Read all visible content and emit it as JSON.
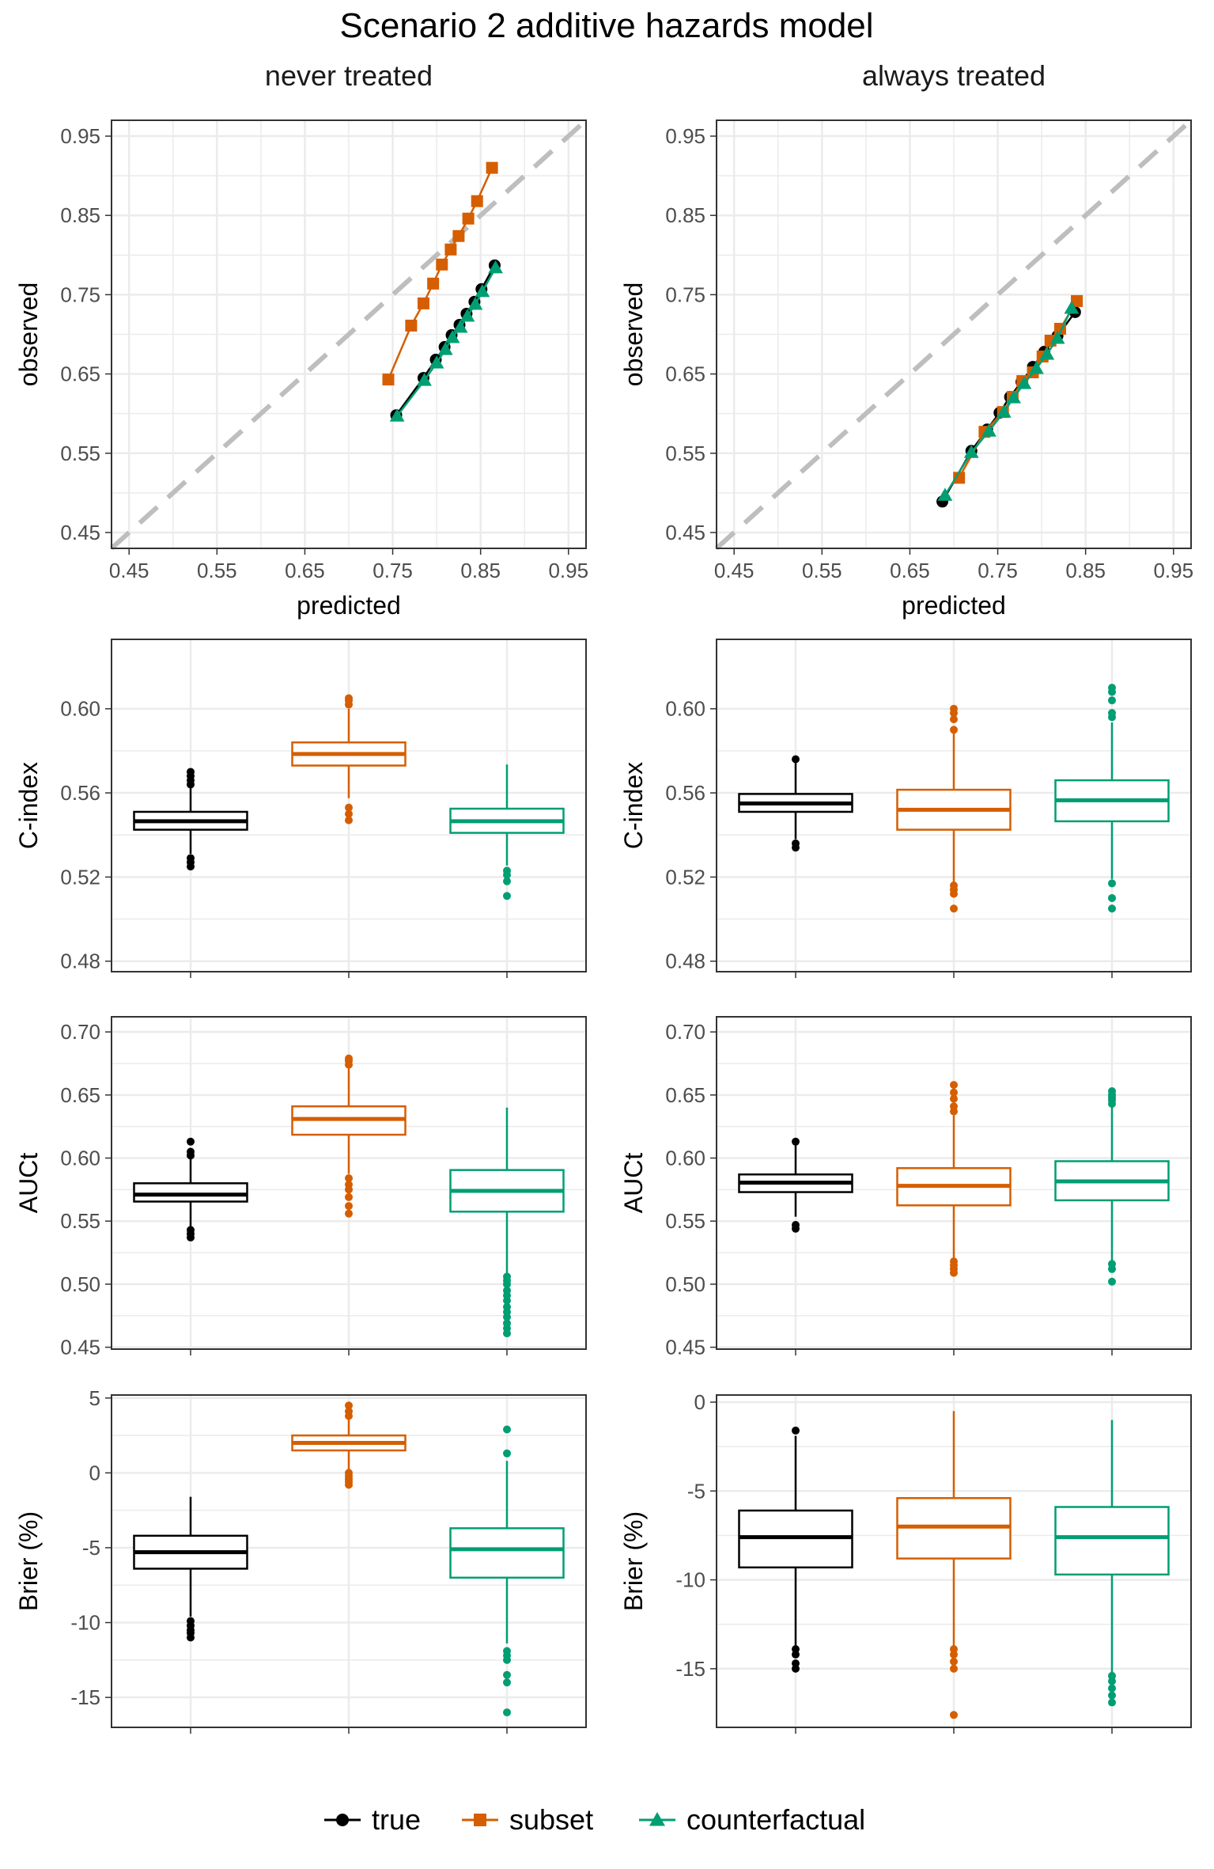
{
  "title": "Scenario 2 additive hazards model",
  "colors": {
    "true": "#000000",
    "subset": "#D55E00",
    "counterfactual": "#009E73",
    "reference": "#BEBEBE",
    "grid": "#EBEBEB",
    "panel_border": "#333333",
    "tick_text": "#4D4D4D"
  },
  "legend": {
    "position": "bottom",
    "items": [
      {
        "key": "true",
        "label": "true",
        "shape": "circle"
      },
      {
        "key": "subset",
        "label": "subset",
        "shape": "square"
      },
      {
        "key": "counterfactual",
        "label": "counterfactual",
        "shape": "triangle"
      }
    ]
  },
  "chart_data": [
    {
      "type": "line",
      "id": "cal-never",
      "row": 0,
      "col": 0,
      "facet_title": "never treated",
      "xlabel": "predicted",
      "ylabel": "observed",
      "xlim": [
        0.43,
        0.97
      ],
      "ylim": [
        0.43,
        0.97
      ],
      "xticks": [
        0.45,
        0.55,
        0.65,
        0.75,
        0.85,
        0.95
      ],
      "yticks": [
        0.45,
        0.55,
        0.65,
        0.75,
        0.85,
        0.95
      ],
      "tick_labels": [
        "0.45",
        "0.55",
        "0.65",
        "0.75",
        "0.85",
        "0.95"
      ],
      "reference_line": "y = x",
      "series": [
        {
          "name": "subset",
          "x": [
            0.745,
            0.771,
            0.785,
            0.796,
            0.806,
            0.816,
            0.825,
            0.836,
            0.846,
            0.863
          ],
          "y": [
            0.643,
            0.711,
            0.739,
            0.764,
            0.788,
            0.807,
            0.824,
            0.846,
            0.868,
            0.91
          ]
        },
        {
          "name": "true",
          "x": [
            0.754,
            0.785,
            0.799,
            0.809,
            0.817,
            0.826,
            0.834,
            0.843,
            0.851,
            0.866
          ],
          "y": [
            0.598,
            0.645,
            0.668,
            0.684,
            0.699,
            0.712,
            0.726,
            0.741,
            0.757,
            0.787
          ]
        },
        {
          "name": "counterfactual",
          "x": [
            0.755,
            0.786,
            0.8,
            0.81,
            0.818,
            0.827,
            0.835,
            0.844,
            0.852,
            0.867
          ],
          "y": [
            0.597,
            0.642,
            0.664,
            0.681,
            0.696,
            0.709,
            0.723,
            0.738,
            0.754,
            0.784
          ]
        }
      ]
    },
    {
      "type": "line",
      "id": "cal-always",
      "row": 0,
      "col": 1,
      "facet_title": "always treated",
      "xlabel": "predicted",
      "ylabel": "observed",
      "xlim": [
        0.43,
        0.97
      ],
      "ylim": [
        0.43,
        0.97
      ],
      "xticks": [
        0.45,
        0.55,
        0.65,
        0.75,
        0.85,
        0.95
      ],
      "yticks": [
        0.45,
        0.55,
        0.65,
        0.75,
        0.85,
        0.95
      ],
      "tick_labels": [
        "0.45",
        "0.55",
        "0.65",
        "0.75",
        "0.85",
        "0.95"
      ],
      "reference_line": "y = x",
      "series": [
        {
          "name": "true",
          "x": [
            0.687,
            0.72,
            0.738,
            0.752,
            0.764,
            0.777,
            0.79,
            0.803,
            0.818,
            0.838
          ],
          "y": [
            0.489,
            0.553,
            0.58,
            0.601,
            0.621,
            0.64,
            0.659,
            0.678,
            0.698,
            0.728
          ]
        },
        {
          "name": "subset",
          "x": [
            0.706,
            0.735,
            0.756,
            0.767,
            0.778,
            0.79,
            0.801,
            0.81,
            0.821,
            0.84
          ],
          "y": [
            0.519,
            0.577,
            0.602,
            0.621,
            0.641,
            0.652,
            0.672,
            0.692,
            0.707,
            0.742
          ]
        },
        {
          "name": "counterfactual",
          "x": [
            0.69,
            0.72,
            0.74,
            0.757,
            0.768,
            0.78,
            0.794,
            0.806,
            0.818,
            0.834
          ],
          "y": [
            0.497,
            0.551,
            0.578,
            0.602,
            0.62,
            0.638,
            0.657,
            0.675,
            0.695,
            0.733
          ]
        }
      ]
    },
    {
      "type": "box",
      "id": "cindex-never",
      "row": 1,
      "col": 0,
      "ylabel": "C-index",
      "ylim": [
        0.475,
        0.633
      ],
      "yticks": [
        0.48,
        0.52,
        0.56,
        0.6
      ],
      "tick_labels": [
        "0.48",
        "0.52",
        "0.56",
        "0.60"
      ],
      "boxes": [
        {
          "name": "true",
          "min": 0.531,
          "q1": 0.5425,
          "median": 0.5465,
          "q3": 0.551,
          "max": 0.5635,
          "outliers": [
            0.525,
            0.527,
            0.529,
            0.564,
            0.566,
            0.568,
            0.57
          ]
        },
        {
          "name": "subset",
          "min": 0.5575,
          "q1": 0.573,
          "median": 0.5785,
          "q3": 0.584,
          "max": 0.6,
          "outliers": [
            0.547,
            0.55,
            0.553,
            0.602,
            0.604,
            0.605
          ]
        },
        {
          "name": "counterfactual",
          "min": 0.5255,
          "q1": 0.541,
          "median": 0.5465,
          "q3": 0.5525,
          "max": 0.5735,
          "outliers": [
            0.511,
            0.518,
            0.521,
            0.523
          ]
        }
      ]
    },
    {
      "type": "box",
      "id": "cindex-always",
      "row": 1,
      "col": 1,
      "ylabel": "C-index",
      "ylim": [
        0.475,
        0.633
      ],
      "yticks": [
        0.48,
        0.52,
        0.56,
        0.6
      ],
      "tick_labels": [
        "0.48",
        "0.52",
        "0.56",
        "0.60"
      ],
      "boxes": [
        {
          "name": "true",
          "min": 0.538,
          "q1": 0.551,
          "median": 0.555,
          "q3": 0.5595,
          "max": 0.5745,
          "outliers": [
            0.534,
            0.536,
            0.576
          ]
        },
        {
          "name": "subset",
          "min": 0.5165,
          "q1": 0.5425,
          "median": 0.552,
          "q3": 0.5615,
          "max": 0.5885,
          "outliers": [
            0.505,
            0.512,
            0.514,
            0.516,
            0.59,
            0.595,
            0.598,
            0.6
          ]
        },
        {
          "name": "counterfactual",
          "min": 0.519,
          "q1": 0.5465,
          "median": 0.5565,
          "q3": 0.566,
          "max": 0.5935,
          "outliers": [
            0.505,
            0.51,
            0.517,
            0.596,
            0.598,
            0.604,
            0.608,
            0.61
          ]
        }
      ]
    },
    {
      "type": "box",
      "id": "auct-never",
      "row": 2,
      "col": 0,
      "ylabel": "AUCt",
      "ylim": [
        0.4485,
        0.712
      ],
      "yticks": [
        0.45,
        0.5,
        0.55,
        0.6,
        0.65,
        0.7
      ],
      "tick_labels": [
        "0.45",
        "0.50",
        "0.55",
        "0.60",
        "0.65",
        "0.70"
      ],
      "boxes": [
        {
          "name": "true",
          "min": 0.545,
          "q1": 0.5655,
          "median": 0.571,
          "q3": 0.58,
          "max": 0.6005,
          "outliers": [
            0.537,
            0.54,
            0.543,
            0.602,
            0.605,
            0.613
          ]
        },
        {
          "name": "subset",
          "min": 0.5875,
          "q1": 0.6185,
          "median": 0.631,
          "q3": 0.641,
          "max": 0.671,
          "outliers": [
            0.556,
            0.562,
            0.569,
            0.575,
            0.579,
            0.584,
            0.674,
            0.677,
            0.679
          ]
        },
        {
          "name": "counterfactual",
          "min": 0.507,
          "q1": 0.5575,
          "median": 0.574,
          "q3": 0.5905,
          "max": 0.64,
          "outliers": [
            0.461,
            0.465,
            0.469,
            0.474,
            0.478,
            0.482,
            0.487,
            0.491,
            0.495,
            0.5,
            0.503,
            0.506
          ]
        }
      ]
    },
    {
      "type": "box",
      "id": "auct-always",
      "row": 2,
      "col": 1,
      "ylabel": "AUCt",
      "ylim": [
        0.4485,
        0.712
      ],
      "yticks": [
        0.45,
        0.5,
        0.55,
        0.6,
        0.65,
        0.7
      ],
      "tick_labels": [
        "0.45",
        "0.50",
        "0.55",
        "0.60",
        "0.65",
        "0.70"
      ],
      "boxes": [
        {
          "name": "true",
          "min": 0.5535,
          "q1": 0.573,
          "median": 0.5805,
          "q3": 0.587,
          "max": 0.61,
          "outliers": [
            0.544,
            0.547,
            0.613
          ]
        },
        {
          "name": "subset",
          "min": 0.5205,
          "q1": 0.5625,
          "median": 0.578,
          "q3": 0.592,
          "max": 0.634,
          "outliers": [
            0.509,
            0.512,
            0.515,
            0.518,
            0.637,
            0.641,
            0.647,
            0.652,
            0.658
          ]
        },
        {
          "name": "counterfactual",
          "min": 0.5185,
          "q1": 0.5665,
          "median": 0.5815,
          "q3": 0.5975,
          "max": 0.6425,
          "outliers": [
            0.502,
            0.512,
            0.516,
            0.643,
            0.646,
            0.648,
            0.65,
            0.653
          ]
        }
      ]
    },
    {
      "type": "box",
      "id": "brier-never",
      "row": 3,
      "col": 0,
      "ylabel": "Brier (%)",
      "ylim": [
        -17,
        5.2
      ],
      "yticks": [
        -15,
        -10,
        -5,
        0,
        5
      ],
      "tick_labels": [
        "-15",
        "-10",
        "-5",
        "0",
        "5"
      ],
      "boxes": [
        {
          "name": "true",
          "min": -9.6,
          "q1": -6.4,
          "median": -5.3,
          "q3": -4.2,
          "max": -1.6,
          "outliers": [
            -11,
            -10.7,
            -10.5,
            -10.2,
            -9.9
          ]
        },
        {
          "name": "subset",
          "min": 0.2,
          "q1": 1.5,
          "median": 2.0,
          "q3": 2.5,
          "max": 3.6,
          "outliers": [
            -0.8,
            -0.6,
            -0.4,
            -0.2,
            0,
            3.8,
            4.1,
            4.5
          ]
        },
        {
          "name": "counterfactual",
          "min": -11.4,
          "q1": -7.0,
          "median": -5.1,
          "q3": -3.7,
          "max": 0.8,
          "outliers": [
            -16,
            -14,
            -13.5,
            -12.5,
            -12.2,
            -11.9,
            1.3,
            2.9
          ]
        }
      ]
    },
    {
      "type": "box",
      "id": "brier-always",
      "row": 3,
      "col": 1,
      "ylabel": "Brier (%)",
      "ylim": [
        -18.3,
        0.4
      ],
      "yticks": [
        -15,
        -10,
        -5,
        0
      ],
      "tick_labels": [
        "-15",
        "-10",
        "-5",
        "0"
      ],
      "boxes": [
        {
          "name": "true",
          "min": -13.8,
          "q1": -9.3,
          "median": -7.6,
          "q3": -6.1,
          "max": -1.9,
          "outliers": [
            -15,
            -14.7,
            -14.2,
            -13.9,
            -1.6
          ]
        },
        {
          "name": "subset",
          "min": -13.7,
          "q1": -8.8,
          "median": -7.0,
          "q3": -5.4,
          "max": -0.5,
          "outliers": [
            -17.6,
            -15,
            -14.6,
            -14.2,
            -13.9
          ]
        },
        {
          "name": "counterfactual",
          "min": -15.2,
          "q1": -9.7,
          "median": -7.6,
          "q3": -5.9,
          "max": -1.0,
          "outliers": [
            -16.9,
            -16.5,
            -16.1,
            -15.7,
            -15.4
          ]
        }
      ]
    }
  ]
}
